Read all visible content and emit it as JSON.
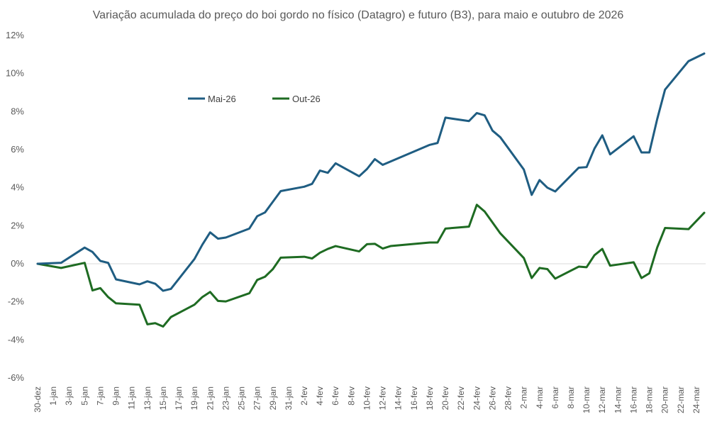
{
  "chart_data": {
    "type": "line",
    "title": "Variação acumulada do preço do boi gordo no físico (Datagro) e futuro (B3), para maio e outubro de 2026",
    "xlabel": "",
    "ylabel": "",
    "ylim": [
      -6,
      12
    ],
    "yticks": [
      -6,
      -4,
      -2,
      0,
      2,
      4,
      6,
      8,
      10,
      12
    ],
    "ytick_labels": [
      "-6%",
      "-4%",
      "-2%",
      "0%",
      "2%",
      "4%",
      "6%",
      "8%",
      "10%",
      "12%"
    ],
    "x_index_range": [
      0,
      85
    ],
    "x_tick_labels": [
      "30-dez",
      "1-jan",
      "3-jan",
      "5-jan",
      "7-jan",
      "9-jan",
      "11-jan",
      "13-jan",
      "15-jan",
      "17-jan",
      "19-jan",
      "21-jan",
      "23-jan",
      "25-jan",
      "27-jan",
      "29-jan",
      "31-jan",
      "2-fev",
      "4-fev",
      "6-fev",
      "8-fev",
      "10-fev",
      "12-fev",
      "14-fev",
      "16-fev",
      "18-fev",
      "20-fev",
      "22-fev",
      "24-fev",
      "26-fev",
      "28-fev",
      "2-mar",
      "4-mar",
      "6-mar",
      "8-mar",
      "10-mar",
      "12-mar",
      "14-mar",
      "16-mar",
      "18-mar",
      "20-mar",
      "22-mar",
      "24-mar"
    ],
    "gridlines": "horizontal",
    "legend_position": "upper-left-inside",
    "series": [
      {
        "name": "Mai-26",
        "color": "#1f5d82",
        "points": [
          [
            0,
            0
          ],
          [
            3,
            0.05
          ],
          [
            6,
            0.85
          ],
          [
            7,
            0.62
          ],
          [
            8,
            0.15
          ],
          [
            9,
            0.05
          ],
          [
            10,
            -0.82
          ],
          [
            13,
            -1.08
          ],
          [
            14,
            -0.92
          ],
          [
            15,
            -1.05
          ],
          [
            16,
            -1.42
          ],
          [
            17,
            -1.32
          ],
          [
            20,
            0.25
          ],
          [
            21,
            1.0
          ],
          [
            22,
            1.65
          ],
          [
            23,
            1.32
          ],
          [
            24,
            1.38
          ],
          [
            27,
            1.85
          ],
          [
            28,
            2.5
          ],
          [
            29,
            2.7
          ],
          [
            31,
            3.82
          ],
          [
            34,
            4.05
          ],
          [
            35,
            4.2
          ],
          [
            36,
            4.9
          ],
          [
            37,
            4.78
          ],
          [
            38,
            5.28
          ],
          [
            41,
            4.6
          ],
          [
            42,
            4.98
          ],
          [
            43,
            5.5
          ],
          [
            44,
            5.2
          ],
          [
            50,
            6.25
          ],
          [
            51,
            6.35
          ],
          [
            52,
            7.68
          ],
          [
            55,
            7.5
          ],
          [
            56,
            7.92
          ],
          [
            57,
            7.8
          ],
          [
            58,
            7.0
          ],
          [
            59,
            6.65
          ],
          [
            62,
            4.95
          ],
          [
            63,
            3.62
          ],
          [
            64,
            4.4
          ],
          [
            65,
            4.0
          ],
          [
            66,
            3.8
          ],
          [
            69,
            5.05
          ],
          [
            70,
            5.08
          ],
          [
            71,
            6.05
          ],
          [
            72,
            6.75
          ],
          [
            73,
            5.75
          ],
          [
            76,
            6.7
          ],
          [
            77,
            5.85
          ],
          [
            78,
            5.85
          ],
          [
            79,
            7.6
          ],
          [
            80,
            9.15
          ],
          [
            83,
            10.65
          ],
          [
            85,
            11.05
          ]
        ]
      },
      {
        "name": "Out-26",
        "color": "#1e6b22",
        "points": [
          [
            0,
            0
          ],
          [
            3,
            -0.22
          ],
          [
            6,
            0.05
          ],
          [
            7,
            -1.4
          ],
          [
            8,
            -1.28
          ],
          [
            9,
            -1.75
          ],
          [
            10,
            -2.08
          ],
          [
            13,
            -2.15
          ],
          [
            14,
            -3.18
          ],
          [
            15,
            -3.12
          ],
          [
            16,
            -3.3
          ],
          [
            17,
            -2.8
          ],
          [
            20,
            -2.15
          ],
          [
            21,
            -1.75
          ],
          [
            22,
            -1.48
          ],
          [
            23,
            -1.95
          ],
          [
            24,
            -1.98
          ],
          [
            27,
            -1.55
          ],
          [
            28,
            -0.85
          ],
          [
            29,
            -0.68
          ],
          [
            30,
            -0.28
          ],
          [
            31,
            0.32
          ],
          [
            34,
            0.37
          ],
          [
            35,
            0.28
          ],
          [
            36,
            0.58
          ],
          [
            37,
            0.78
          ],
          [
            38,
            0.93
          ],
          [
            41,
            0.65
          ],
          [
            42,
            1.03
          ],
          [
            43,
            1.05
          ],
          [
            44,
            0.8
          ],
          [
            45,
            0.93
          ],
          [
            50,
            1.12
          ],
          [
            51,
            1.12
          ],
          [
            52,
            1.85
          ],
          [
            55,
            1.95
          ],
          [
            56,
            3.1
          ],
          [
            57,
            2.75
          ],
          [
            59,
            1.6
          ],
          [
            62,
            0.3
          ],
          [
            63,
            -0.75
          ],
          [
            64,
            -0.22
          ],
          [
            65,
            -0.28
          ],
          [
            66,
            -0.78
          ],
          [
            69,
            -0.15
          ],
          [
            70,
            -0.18
          ],
          [
            71,
            0.45
          ],
          [
            72,
            0.78
          ],
          [
            73,
            -0.1
          ],
          [
            76,
            0.08
          ],
          [
            77,
            -0.75
          ],
          [
            78,
            -0.5
          ],
          [
            79,
            0.85
          ],
          [
            80,
            1.88
          ],
          [
            83,
            1.82
          ],
          [
            85,
            2.68
          ]
        ]
      }
    ]
  }
}
